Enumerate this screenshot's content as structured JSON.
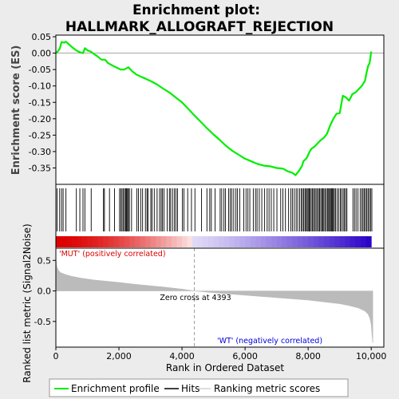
{
  "title_line1": "Enrichment plot:",
  "title_line2": "HALLMARK_ALLOGRAFT_REJECTION",
  "chart_data": {
    "type": "line",
    "top_panel": {
      "ylabel": "Enrichment score (ES)",
      "ylim": [
        -0.4,
        0.055
      ],
      "yticks": [
        0.05,
        0.0,
        -0.05,
        -0.1,
        -0.15,
        -0.2,
        -0.25,
        -0.3,
        -0.35
      ],
      "ytick_labels": [
        "0.05",
        "0.00",
        "-0.05",
        "-0.10",
        "-0.15",
        "-0.20",
        "-0.25",
        "-0.30",
        "-0.35"
      ],
      "series": [
        {
          "name": "Enrichment profile",
          "color": "#00ee00",
          "x": [
            0,
            60,
            130,
            180,
            260,
            320,
            400,
            520,
            650,
            760,
            860,
            920,
            1010,
            1100,
            1200,
            1320,
            1450,
            1560,
            1650,
            1800,
            1950,
            2060,
            2160,
            2300,
            2420,
            2550,
            2700,
            2850,
            3000,
            3200,
            3400,
            3600,
            3800,
            4000,
            4200,
            4393,
            4600,
            4800,
            5000,
            5200,
            5400,
            5600,
            5800,
            6000,
            6200,
            6400,
            6600,
            6800,
            7000,
            7200,
            7350,
            7500,
            7600,
            7700,
            7800,
            7850,
            7900,
            7950,
            8000,
            8050,
            8100,
            8200,
            8300,
            8400,
            8500,
            8600,
            8700,
            8800,
            8900,
            9000,
            9100,
            9200,
            9300,
            9400,
            9500,
            9600,
            9700,
            9800,
            9850,
            9900,
            9950,
            10000
          ],
          "y": [
            0.0,
            0.005,
            0.015,
            0.034,
            0.032,
            0.035,
            0.028,
            0.018,
            0.008,
            0.003,
            0.0,
            0.015,
            0.008,
            0.005,
            -0.002,
            -0.01,
            -0.02,
            -0.02,
            -0.03,
            -0.038,
            -0.045,
            -0.05,
            -0.05,
            -0.043,
            -0.055,
            -0.065,
            -0.072,
            -0.078,
            -0.085,
            -0.095,
            -0.108,
            -0.12,
            -0.135,
            -0.15,
            -0.17,
            -0.19,
            -0.21,
            -0.23,
            -0.248,
            -0.265,
            -0.283,
            -0.298,
            -0.31,
            -0.322,
            -0.33,
            -0.338,
            -0.343,
            -0.345,
            -0.35,
            -0.352,
            -0.36,
            -0.365,
            -0.372,
            -0.36,
            -0.345,
            -0.33,
            -0.325,
            -0.32,
            -0.31,
            -0.3,
            -0.292,
            -0.285,
            -0.275,
            -0.265,
            -0.258,
            -0.245,
            -0.22,
            -0.2,
            -0.185,
            -0.183,
            -0.13,
            -0.135,
            -0.145,
            -0.125,
            -0.12,
            -0.11,
            -0.1,
            -0.085,
            -0.06,
            -0.04,
            -0.03,
            0.005
          ]
        }
      ]
    },
    "hits": {
      "name": "Hits",
      "x": [
        40,
        120,
        180,
        230,
        320,
        650,
        760,
        860,
        920,
        1120,
        1510,
        1540,
        1700,
        1860,
        2020,
        2060,
        2100,
        2140,
        2180,
        2210,
        2240,
        2270,
        2300,
        2330,
        2400,
        2570,
        2620,
        2690,
        2750,
        2840,
        2890,
        2920,
        3010,
        3050,
        3120,
        3210,
        3290,
        3340,
        3380,
        3430,
        3530,
        3600,
        3640,
        3700,
        3760,
        3810,
        3860,
        4010,
        4060,
        4180,
        4300,
        4410,
        4620,
        4790,
        4880,
        4930,
        5050,
        5210,
        5260,
        5330,
        5380,
        5480,
        5530,
        5580,
        5640,
        5710,
        5760,
        5830,
        5960,
        6030,
        6090,
        6150,
        6260,
        6330,
        6380,
        6450,
        6530,
        6620,
        6700,
        6760,
        6830,
        6910,
        7010,
        7130,
        7200,
        7280,
        7380,
        7450,
        7500,
        7560,
        7620,
        7670,
        7730,
        7780,
        7820,
        7860,
        7900,
        7930,
        7970,
        8000,
        8030,
        8060,
        8100,
        8140,
        8170,
        8210,
        8250,
        8290,
        8330,
        8360,
        8400,
        8440,
        8470,
        8500,
        8540,
        8580,
        8620,
        8650,
        8680,
        8710,
        8740,
        8770,
        8800,
        8830,
        8870,
        8920,
        8970,
        9020,
        9060,
        9110,
        9150,
        9190,
        9230,
        9420,
        9470,
        9520,
        9580,
        9650,
        9700,
        9740,
        9780,
        9820,
        9860,
        9900,
        9940,
        9980,
        10020
      ]
    },
    "bottom_panel": {
      "ylabel": "Ranked list metric (Signal2Noise)",
      "xlabel": "Rank in Ordered Dataset",
      "ylim": [
        -0.92,
        0.7
      ],
      "yticks": [
        0.5,
        0.0,
        -0.5
      ],
      "ytick_labels": [
        "0.5",
        "0.0",
        "-0.5"
      ],
      "xticks": [
        0,
        2000,
        4000,
        6000,
        8000,
        10000
      ],
      "xtick_labels": [
        "0",
        "2,000",
        "4,000",
        "6,000",
        "8,000",
        "10,000"
      ],
      "xlim": [
        0,
        10400
      ],
      "metric_series": {
        "name": "Ranking metric scores",
        "x": [
          0,
          30,
          80,
          150,
          300,
          500,
          800,
          1200,
          1600,
          2000,
          2500,
          3000,
          3500,
          4000,
          4393,
          5000,
          5500,
          6000,
          6500,
          7000,
          7500,
          8000,
          8500,
          9000,
          9300,
          9600,
          9800,
          9900,
          9960,
          10000,
          10020,
          10050
        ],
        "y": [
          0.55,
          0.4,
          0.34,
          0.3,
          0.27,
          0.24,
          0.21,
          0.18,
          0.16,
          0.14,
          0.11,
          0.085,
          0.06,
          0.03,
          0.0,
          -0.03,
          -0.05,
          -0.07,
          -0.09,
          -0.11,
          -0.13,
          -0.15,
          -0.18,
          -0.21,
          -0.24,
          -0.28,
          -0.33,
          -0.38,
          -0.45,
          -0.55,
          -0.7,
          -0.85
        ]
      },
      "zero_cross": 4393,
      "zero_cross_label": "Zero cross at 4393",
      "pos_label": "'MUT' (positively correlated)",
      "neg_label": "'WT' (negatively correlated)"
    },
    "legend": {
      "placement": "bottom",
      "items": [
        "Enrichment profile",
        "Hits",
        "Ranking metric scores"
      ]
    },
    "colors": {
      "profile": "#00ee00",
      "hits": "#000000",
      "metric_fill": "#bbbbbb",
      "pos_text": "#dd0000",
      "neg_text": "#0000dd",
      "bar_red": "#dd0000",
      "bar_blue": "#2a00c8"
    }
  }
}
